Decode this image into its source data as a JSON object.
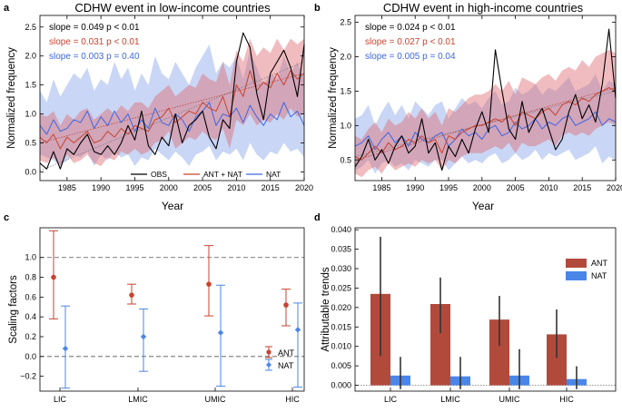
{
  "panels": [
    {
      "letter": "a",
      "title": "CDHW event in low-income countries",
      "type": "line",
      "xlabel": "Year",
      "ylabel": "Normalized frequency",
      "xlim": [
        1981,
        2020
      ],
      "ylim": [
        -0.15,
        2.7
      ],
      "xticks": [
        1985,
        1990,
        1995,
        2000,
        2005,
        2010,
        2015,
        2020
      ],
      "yticks": [
        0.0,
        0.5,
        1.0,
        1.5,
        2.0,
        2.5
      ],
      "ytick_labels": [
        "0.0",
        "0.5",
        "1.0",
        "1.5",
        "2.0",
        "2.5"
      ],
      "slopes": [
        {
          "text": "slope = 0.049 p < 0.01",
          "color": "#000000"
        },
        {
          "text": "slope = 0.031 p < 0.01",
          "color": "#c8432e"
        },
        {
          "text": "slope = 0.003 p = 0.40",
          "color": "#3d67e0"
        }
      ],
      "legend": [
        {
          "label": "OBS",
          "color": "#000000"
        },
        {
          "label": "ANT + NAT",
          "color": "#c8432e"
        },
        {
          "label": "NAT",
          "color": "#3d67e0"
        }
      ],
      "legend_position": "bottom",
      "series": {
        "years_start": 1981,
        "obs": [
          0.15,
          0.05,
          0.35,
          0.05,
          0.4,
          0.3,
          0.5,
          0.65,
          0.35,
          0.3,
          0.45,
          0.3,
          0.5,
          0.8,
          0.55,
          1.05,
          0.45,
          0.3,
          0.6,
          0.45,
          1.0,
          0.5,
          0.8,
          0.9,
          1.05,
          0.6,
          0.4,
          0.9,
          0.75,
          1.9,
          2.4,
          2.15,
          1.35,
          0.9,
          1.7,
          1.9,
          2.1,
          1.8,
          1.3,
          2.2
        ],
        "ant": [
          0.6,
          0.5,
          0.65,
          0.4,
          0.6,
          0.5,
          0.6,
          0.7,
          0.5,
          0.55,
          0.7,
          0.6,
          0.75,
          0.65,
          0.8,
          0.75,
          0.7,
          0.9,
          0.95,
          1.1,
          0.85,
          0.95,
          1.05,
          1.0,
          1.2,
          1.1,
          1.05,
          1.3,
          0.95,
          1.5,
          1.3,
          1.75,
          1.4,
          1.55,
          1.45,
          1.7,
          1.5,
          1.75,
          1.6,
          1.7
        ],
        "ant_lo": [
          0.2,
          0.15,
          0.25,
          0.1,
          0.3,
          0.15,
          0.2,
          0.3,
          0.15,
          0.1,
          0.25,
          0.2,
          0.35,
          0.3,
          0.4,
          0.3,
          0.35,
          0.5,
          0.55,
          0.7,
          0.4,
          0.5,
          0.6,
          0.55,
          0.7,
          0.6,
          0.55,
          0.75,
          0.4,
          0.9,
          0.8,
          1.0,
          0.8,
          0.9,
          0.85,
          1.0,
          0.9,
          1.1,
          0.95,
          1.0
        ],
        "ant_hi": [
          1.0,
          0.95,
          1.05,
          0.8,
          1.0,
          0.9,
          1.05,
          1.1,
          0.9,
          1.0,
          1.1,
          1.0,
          1.15,
          1.05,
          1.2,
          1.2,
          1.1,
          1.3,
          1.4,
          1.5,
          1.3,
          1.4,
          1.5,
          1.45,
          1.7,
          1.6,
          1.55,
          1.9,
          1.5,
          2.1,
          1.9,
          2.3,
          2.0,
          2.15,
          2.05,
          2.3,
          2.1,
          2.3,
          2.2,
          2.3
        ],
        "nat": [
          0.8,
          0.65,
          0.9,
          0.7,
          0.75,
          0.9,
          0.85,
          1.05,
          0.75,
          0.95,
          0.8,
          1.05,
          0.85,
          1.0,
          0.7,
          0.9,
          0.75,
          1.1,
          0.85,
          0.8,
          1.0,
          0.9,
          0.7,
          0.95,
          1.05,
          1.2,
          0.8,
          1.0,
          0.95,
          1.1,
          0.85,
          1.15,
          0.95,
          0.8,
          1.0,
          0.9,
          1.2,
          0.95,
          1.05,
          0.8
        ],
        "nat_lo": [
          0.3,
          0.25,
          0.2,
          0.1,
          0.2,
          0.3,
          0.25,
          0.35,
          0.1,
          0.3,
          0.2,
          0.35,
          0.25,
          0.3,
          0.1,
          0.25,
          0.2,
          0.4,
          0.3,
          0.2,
          0.35,
          0.25,
          0.1,
          0.3,
          0.35,
          0.45,
          0.2,
          0.35,
          0.3,
          0.4,
          0.2,
          0.5,
          0.3,
          0.2,
          0.35,
          0.3,
          0.5,
          0.35,
          0.4,
          0.25
        ],
        "nat_hi": [
          1.4,
          1.2,
          1.6,
          1.3,
          1.5,
          1.7,
          1.6,
          1.8,
          1.4,
          1.6,
          1.5,
          1.9,
          1.6,
          1.8,
          1.4,
          1.7,
          1.5,
          2.0,
          1.7,
          1.6,
          1.9,
          1.7,
          1.5,
          1.8,
          2.0,
          2.2,
          1.7,
          1.9,
          1.8,
          2.0,
          1.6,
          2.1,
          1.8,
          1.5,
          1.7,
          1.6,
          2.0,
          1.7,
          1.9,
          1.6
        ],
        "fit_obs": [
          0.02,
          1.9
        ],
        "fit_ant": [
          0.5,
          1.7
        ]
      }
    },
    {
      "letter": "b",
      "title": "CDHW event in high-income countries",
      "type": "line",
      "xlabel": "Year",
      "ylabel": "Normalized frequency",
      "xlim": [
        1981,
        2020
      ],
      "ylim": [
        0.2,
        2.6
      ],
      "xticks": [
        1985,
        1990,
        1995,
        2000,
        2005,
        2010,
        2015,
        2020
      ],
      "yticks": [
        0.5,
        1.0,
        1.5,
        2.0,
        2.5
      ],
      "ytick_labels": [
        "0.5",
        "1.0",
        "1.5",
        "2.0",
        "2.5"
      ],
      "slopes": [
        {
          "text": "slope = 0.024 p < 0.01",
          "color": "#000000"
        },
        {
          "text": "slope = 0.027 p < 0.01",
          "color": "#c8432e"
        },
        {
          "text": "slope = 0.005 p = 0.04",
          "color": "#3d67e0"
        }
      ],
      "series": {
        "years_start": 1981,
        "obs": [
          0.4,
          0.55,
          0.8,
          0.5,
          0.65,
          0.45,
          0.7,
          0.85,
          0.6,
          0.7,
          1.1,
          0.6,
          0.75,
          0.35,
          0.7,
          0.55,
          0.8,
          0.6,
          0.95,
          1.2,
          0.9,
          2.1,
          1.5,
          0.95,
          0.8,
          1.35,
          0.9,
          1.1,
          1.25,
          0.95,
          0.65,
          0.8,
          1.2,
          1.45,
          1.1,
          1.3,
          1.05,
          1.6,
          2.4,
          1.4
        ],
        "ant": [
          0.55,
          0.5,
          0.6,
          0.7,
          0.6,
          0.75,
          0.65,
          0.7,
          0.8,
          0.75,
          0.85,
          0.75,
          0.8,
          0.6,
          0.85,
          0.8,
          0.9,
          0.95,
          1.0,
          1.0,
          1.05,
          1.1,
          1.05,
          1.15,
          1.0,
          1.2,
          1.15,
          1.1,
          1.2,
          1.25,
          1.15,
          1.3,
          1.35,
          1.3,
          1.4,
          1.35,
          1.45,
          1.5,
          1.55,
          1.5
        ],
        "ant_lo": [
          0.3,
          0.25,
          0.35,
          0.4,
          0.3,
          0.45,
          0.35,
          0.4,
          0.45,
          0.4,
          0.5,
          0.45,
          0.5,
          0.35,
          0.5,
          0.45,
          0.55,
          0.6,
          0.6,
          0.6,
          0.65,
          0.7,
          0.65,
          0.75,
          0.6,
          0.75,
          0.7,
          0.7,
          0.75,
          0.8,
          0.7,
          0.85,
          0.9,
          0.85,
          0.9,
          0.85,
          0.95,
          1.0,
          1.05,
          1.0
        ],
        "ant_hi": [
          0.85,
          0.8,
          0.95,
          1.05,
          0.9,
          1.1,
          1.0,
          1.05,
          1.2,
          1.1,
          1.25,
          1.1,
          1.2,
          1.0,
          1.25,
          1.2,
          1.3,
          1.4,
          1.45,
          1.45,
          1.5,
          1.6,
          1.5,
          1.65,
          1.45,
          1.7,
          1.65,
          1.6,
          1.7,
          1.75,
          1.65,
          1.8,
          1.85,
          1.8,
          1.95,
          1.85,
          2.0,
          2.05,
          2.1,
          2.05
        ],
        "nat": [
          0.7,
          0.75,
          0.85,
          0.65,
          0.8,
          0.9,
          0.75,
          0.85,
          0.7,
          0.9,
          0.8,
          0.75,
          0.85,
          0.9,
          0.7,
          0.8,
          0.95,
          0.85,
          0.9,
          0.8,
          0.95,
          1.0,
          0.85,
          0.9,
          1.05,
          0.95,
          1.0,
          1.1,
          0.95,
          1.05,
          1.0,
          1.1,
          1.15,
          1.0,
          1.05,
          1.1,
          1.2,
          1.0,
          1.1,
          1.05
        ],
        "nat_lo": [
          0.35,
          0.4,
          0.5,
          0.3,
          0.45,
          0.5,
          0.4,
          0.45,
          0.35,
          0.5,
          0.45,
          0.4,
          0.5,
          0.5,
          0.35,
          0.45,
          0.55,
          0.45,
          0.5,
          0.45,
          0.55,
          0.6,
          0.45,
          0.5,
          0.6,
          0.5,
          0.55,
          0.65,
          0.5,
          0.6,
          0.55,
          0.6,
          0.65,
          0.5,
          0.55,
          0.6,
          0.7,
          0.45,
          0.55,
          0.5
        ],
        "nat_hi": [
          1.1,
          1.15,
          1.3,
          1.0,
          1.2,
          1.35,
          1.15,
          1.3,
          1.1,
          1.35,
          1.25,
          1.15,
          1.3,
          1.35,
          1.1,
          1.25,
          1.4,
          1.3,
          1.35,
          1.25,
          1.4,
          1.5,
          1.3,
          1.35,
          1.55,
          1.45,
          1.5,
          1.6,
          1.45,
          1.55,
          1.5,
          1.6,
          1.7,
          1.5,
          1.55,
          1.6,
          1.75,
          1.5,
          1.65,
          1.6
        ],
        "fit_obs": [
          0.55,
          1.5
        ],
        "fit_ant": [
          0.5,
          1.55
        ]
      }
    },
    {
      "letter": "c",
      "type": "errorbar",
      "ylabel": "Scaling factors",
      "categories": [
        "LIC",
        "LMIC",
        "UMIC",
        "HIC"
      ],
      "ylim": [
        -0.35,
        1.3
      ],
      "yticks": [
        -0.2,
        0.0,
        0.2,
        0.4,
        0.6,
        0.8,
        1.0
      ],
      "ytick_labels": [
        "−0.2",
        "0.0",
        "0.2",
        "0.4",
        "0.6",
        "0.8",
        "1.0"
      ],
      "reference_lines": [
        0.0,
        1.0
      ],
      "series": [
        {
          "name": "ANT",
          "color": "#c8432e",
          "marker": "circle",
          "values": [
            0.8,
            0.62,
            0.73,
            0.52
          ],
          "lo": [
            0.38,
            0.53,
            0.41,
            0.31
          ],
          "hi": [
            1.27,
            0.73,
            1.12,
            0.68
          ]
        },
        {
          "name": "NAT",
          "color": "#4a86e8",
          "marker": "diamond",
          "values": [
            0.08,
            0.2,
            0.24,
            0.27
          ],
          "lo": [
            -0.32,
            -0.15,
            -0.3,
            -0.31
          ],
          "hi": [
            0.51,
            0.48,
            0.72,
            0.54
          ]
        }
      ],
      "legend_position": "bottom-right"
    },
    {
      "letter": "d",
      "type": "bar",
      "ylabel": "Attributable trends",
      "categories": [
        "LIC",
        "LMIC",
        "UMIC",
        "HIC"
      ],
      "ylim": [
        0.0,
        0.04
      ],
      "yticks": [
        0.0,
        0.005,
        0.01,
        0.015,
        0.02,
        0.025,
        0.03,
        0.035,
        0.04
      ],
      "ytick_labels": [
        "0.000",
        "0.005",
        "0.010",
        "0.015",
        "0.020",
        "0.025",
        "0.030",
        "0.035",
        "0.040"
      ],
      "series": [
        {
          "name": "ANT",
          "color": "#b24a3c",
          "values": [
            0.0235,
            0.0209,
            0.0169,
            0.0131
          ],
          "lo": [
            0.0075,
            0.0134,
            0.0101,
            0.007
          ],
          "hi": [
            0.0382,
            0.0277,
            0.023,
            0.0195
          ]
        },
        {
          "name": "NAT",
          "color": "#4a86e8",
          "values": [
            0.0025,
            0.0023,
            0.0025,
            0.0016
          ],
          "lo": [
            -0.001,
            -0.001,
            -0.001,
            -0.001
          ],
          "hi": [
            0.0073,
            0.0073,
            0.0093,
            0.0049
          ]
        }
      ],
      "legend_position": "top-right"
    }
  ],
  "chart_data": [
    {
      "type": "line",
      "panel": "a",
      "title": "CDHW event in low-income countries",
      "xlabel": "Year",
      "ylabel": "Normalized frequency",
      "xlim": [
        1981,
        2020
      ],
      "ylim": [
        -0.15,
        2.7
      ],
      "series": [
        {
          "name": "OBS",
          "slope": 0.049,
          "p": "< 0.01"
        },
        {
          "name": "ANT + NAT",
          "slope": 0.031,
          "p": "< 0.01"
        },
        {
          "name": "NAT",
          "slope": 0.003,
          "p": "= 0.40"
        }
      ]
    },
    {
      "type": "line",
      "panel": "b",
      "title": "CDHW event in high-income countries",
      "xlabel": "Year",
      "ylabel": "Normalized frequency",
      "xlim": [
        1981,
        2020
      ],
      "ylim": [
        0.2,
        2.6
      ],
      "series": [
        {
          "name": "OBS",
          "slope": 0.024,
          "p": "< 0.01"
        },
        {
          "name": "ANT + NAT",
          "slope": 0.027,
          "p": "< 0.01"
        },
        {
          "name": "NAT",
          "slope": 0.005,
          "p": "= 0.04"
        }
      ]
    },
    {
      "type": "scatter",
      "panel": "c",
      "ylabel": "Scaling factors",
      "categories": [
        "LIC",
        "LMIC",
        "UMIC",
        "HIC"
      ],
      "series": [
        {
          "name": "ANT",
          "values": [
            0.8,
            0.62,
            0.73,
            0.52
          ],
          "lo": [
            0.38,
            0.53,
            0.41,
            0.31
          ],
          "hi": [
            1.27,
            0.73,
            1.12,
            0.68
          ]
        },
        {
          "name": "NAT",
          "values": [
            0.08,
            0.2,
            0.24,
            0.27
          ],
          "lo": [
            -0.32,
            -0.15,
            -0.3,
            -0.31
          ],
          "hi": [
            0.51,
            0.48,
            0.72,
            0.54
          ]
        }
      ]
    },
    {
      "type": "bar",
      "panel": "d",
      "ylabel": "Attributable trends",
      "categories": [
        "LIC",
        "LMIC",
        "UMIC",
        "HIC"
      ],
      "series": [
        {
          "name": "ANT",
          "values": [
            0.0235,
            0.0209,
            0.0169,
            0.0131
          ]
        },
        {
          "name": "NAT",
          "values": [
            0.0025,
            0.0023,
            0.0025,
            0.0016
          ]
        }
      ]
    }
  ]
}
